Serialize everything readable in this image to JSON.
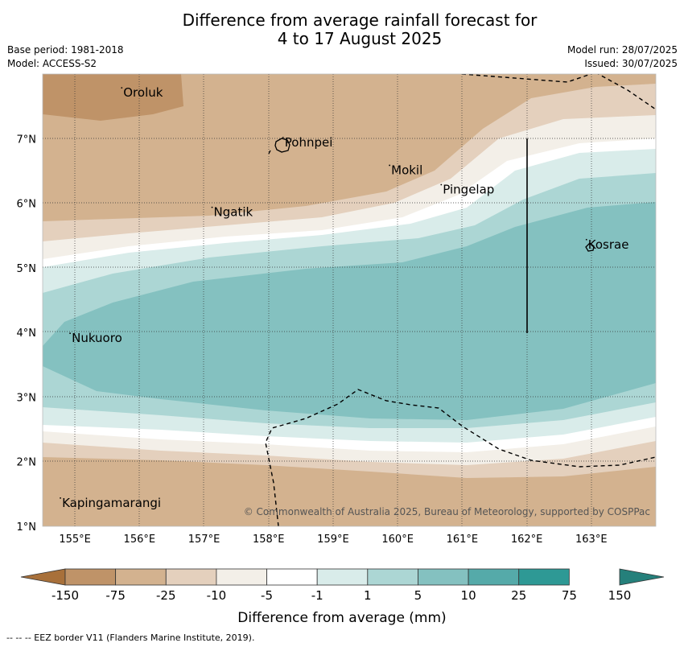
{
  "title_line1": "Difference from average rainfall forecast for",
  "title_line2": "4 to 17 August 2025",
  "base_period": "Base period: 1981-2018",
  "model": "Model: ACCESS-S2",
  "model_run": "Model run: 28/07/2025",
  "issued": "Issued: 30/07/2025",
  "places": [
    {
      "name": "Oroluk",
      "lon": 155.75,
      "lat": 7.65
    },
    {
      "name": "Pohnpei",
      "lon": 158.25,
      "lat": 6.88
    },
    {
      "name": "Mokil",
      "lon": 159.9,
      "lat": 6.45
    },
    {
      "name": "Pingelap",
      "lon": 160.7,
      "lat": 6.15
    },
    {
      "name": "Ngatik",
      "lon": 157.15,
      "lat": 5.8
    },
    {
      "name": "Kosrae",
      "lon": 162.95,
      "lat": 5.3
    },
    {
      "name": "Nukuoro",
      "lon": 154.95,
      "lat": 3.85
    },
    {
      "name": "Kapingamarangi",
      "lon": 154.8,
      "lat": 1.3
    }
  ],
  "axes": {
    "lon_ticks": [
      "155°E",
      "156°E",
      "157°E",
      "158°E",
      "159°E",
      "160°E",
      "161°E",
      "162°E",
      "163°E"
    ],
    "lat_ticks": [
      "7°N",
      "6°N",
      "5°N",
      "4°N",
      "3°N",
      "2°N",
      "1°N"
    ],
    "lon_range": [
      154.5,
      164.0
    ],
    "lat_range": [
      1.0,
      8.0
    ]
  },
  "credit": "© Commonwealth of Australia 2025, Bureau of Meteorology, supported by COSPPac",
  "colorbar": {
    "title": "Difference from average (mm)",
    "labels": [
      "-150",
      "-75",
      "-25",
      "-10",
      "-5",
      "-1",
      "1",
      "5",
      "10",
      "25",
      "75",
      "150"
    ],
    "colors": [
      "#a8703a",
      "#bf9368",
      "#d3b28f",
      "#e4d0bd",
      "#f3efe8",
      "#ffffff",
      "#d9ecea",
      "#acd6d4",
      "#84c1c0",
      "#55aaa9",
      "#2e9995",
      "#25807b"
    ]
  },
  "footer": "--  --  -- EEZ border V11 (Flanders Marine Institute, 2019)."
}
